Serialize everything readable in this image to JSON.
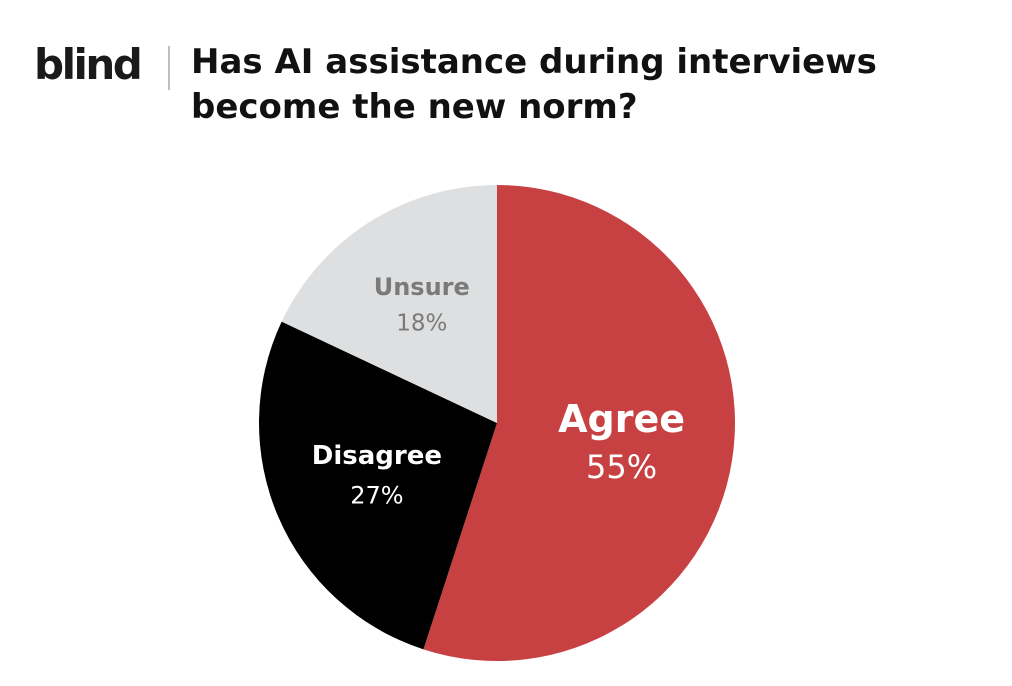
{
  "brand": {
    "logo_text": "blind"
  },
  "title_lines": [
    "Has AI assistance during interviews",
    "become the new norm?"
  ],
  "chart_data": {
    "type": "pie",
    "title": "Has AI assistance during interviews become the new norm?",
    "slices": [
      {
        "label": "Agree",
        "value": 55,
        "display": "55%",
        "color": "#c84142",
        "text_color": "#ffffff"
      },
      {
        "label": "Disagree",
        "value": 27,
        "display": "27%",
        "color": "#000000",
        "text_color": "#ffffff"
      },
      {
        "label": "Unsure",
        "value": 18,
        "display": "18%",
        "color": "#dedfe0",
        "text_color": "#7a7a7a"
      }
    ],
    "start_angle": "12 o'clock",
    "direction": "clockwise",
    "legend": "none"
  }
}
